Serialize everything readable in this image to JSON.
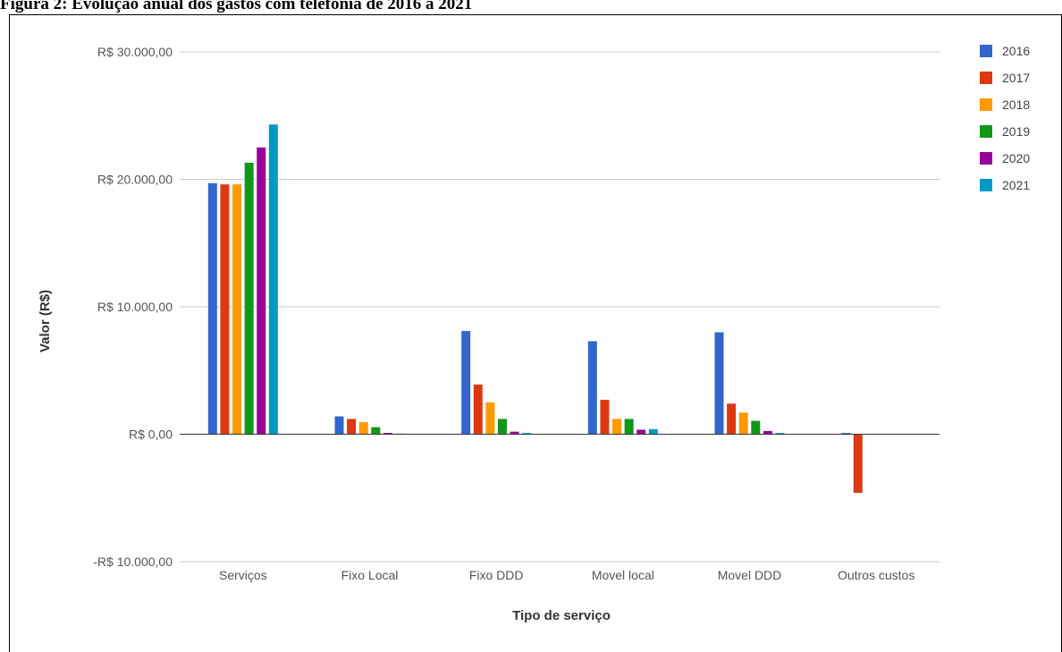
{
  "figure": {
    "title": "Figura 2: Evolução anual dos gastos com telefonia de 2016 a 2021"
  },
  "chart_data": {
    "type": "bar",
    "categories": [
      "Serviços",
      "Fixo Local",
      "Fixo DDD",
      "Movel local",
      "Movel DDD",
      "Outros custos"
    ],
    "series": [
      {
        "name": "2016",
        "color": "#3366cc",
        "values": [
          19700,
          1400,
          8100,
          7300,
          8000,
          100
        ]
      },
      {
        "name": "2017",
        "color": "#dc3912",
        "values": [
          19600,
          1200,
          3900,
          2700,
          2400,
          -4600
        ]
      },
      {
        "name": "2018",
        "color": "#ff9900",
        "values": [
          19600,
          950,
          2500,
          1200,
          1700,
          0
        ]
      },
      {
        "name": "2019",
        "color": "#109618",
        "values": [
          21300,
          550,
          1200,
          1200,
          1050,
          0
        ]
      },
      {
        "name": "2020",
        "color": "#990099",
        "values": [
          22500,
          100,
          200,
          350,
          250,
          0
        ]
      },
      {
        "name": "2021",
        "color": "#0099c6",
        "values": [
          24300,
          50,
          100,
          400,
          100,
          0
        ]
      }
    ],
    "yticks": [
      -10000,
      0,
      10000,
      20000,
      30000
    ],
    "ytick_labels": [
      "-R$ 10.000,00",
      "R$ 0,00",
      "R$ 10.000,00",
      "R$ 20.000,00",
      "R$ 30.000,00"
    ],
    "ylim": [
      -10000,
      30000
    ],
    "xlabel": "Tipo de serviço",
    "ylabel": "Valor (R$)",
    "legend_position": "right",
    "grid": true
  }
}
